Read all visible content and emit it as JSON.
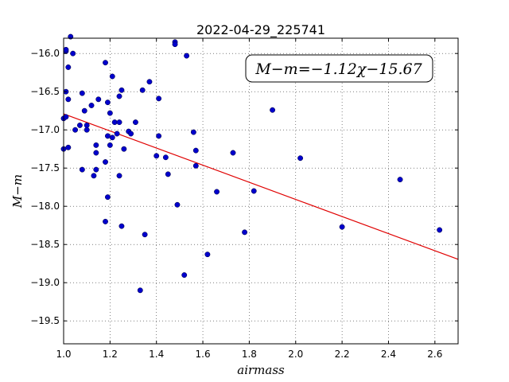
{
  "chart_data": {
    "type": "scatter",
    "title": "2022-04-29_225741",
    "xlabel": "airmass",
    "ylabel": "M−m",
    "xlim": [
      1.0,
      2.7
    ],
    "ylim": [
      -15.8,
      -19.8
    ],
    "grid": true,
    "x_ticks": [
      1.0,
      1.2,
      1.4,
      1.6,
      1.8,
      2.0,
      2.2,
      2.4,
      2.6
    ],
    "x_tick_labels": [
      "1.0",
      "1.2",
      "1.4",
      "1.6",
      "1.8",
      "2.0",
      "2.2",
      "2.4",
      "2.6"
    ],
    "y_ticks": [
      -16.0,
      -16.5,
      -17.0,
      -17.5,
      -18.0,
      -18.5,
      -19.0,
      -19.5
    ],
    "y_tick_labels": [
      "−16.0",
      "−16.5",
      "−17.0",
      "−17.5",
      "−18.0",
      "−18.5",
      "−19.0",
      "−19.5"
    ],
    "annotation": "M−m=−1.12χ−15.67",
    "fit": {
      "slope": -1.12,
      "intercept": -15.67,
      "x_range": [
        1.0,
        2.7
      ],
      "color": "#e00000"
    },
    "point_color": "#0000cc",
    "points": [
      [
        1.0,
        -16.85
      ],
      [
        1.0,
        -17.25
      ],
      [
        1.01,
        -15.97
      ],
      [
        1.01,
        -15.95
      ],
      [
        1.01,
        -16.5
      ],
      [
        1.01,
        -16.83
      ],
      [
        1.02,
        -16.6
      ],
      [
        1.02,
        -17.23
      ],
      [
        1.02,
        -16.18
      ],
      [
        1.03,
        -15.78
      ],
      [
        1.04,
        -16.0
      ],
      [
        1.05,
        -17.0
      ],
      [
        1.07,
        -16.94
      ],
      [
        1.08,
        -17.52
      ],
      [
        1.08,
        -16.52
      ],
      [
        1.09,
        -16.75
      ],
      [
        1.1,
        -16.94
      ],
      [
        1.1,
        -17.0
      ],
      [
        1.12,
        -16.68
      ],
      [
        1.13,
        -17.6
      ],
      [
        1.14,
        -17.52
      ],
      [
        1.14,
        -17.3
      ],
      [
        1.14,
        -17.2
      ],
      [
        1.15,
        -16.6
      ],
      [
        1.18,
        -16.12
      ],
      [
        1.18,
        -17.42
      ],
      [
        1.18,
        -18.2
      ],
      [
        1.19,
        -17.88
      ],
      [
        1.19,
        -16.64
      ],
      [
        1.19,
        -17.08
      ],
      [
        1.2,
        -17.2
      ],
      [
        1.2,
        -16.78
      ],
      [
        1.21,
        -16.3
      ],
      [
        1.21,
        -17.1
      ],
      [
        1.22,
        -16.9
      ],
      [
        1.23,
        -17.05
      ],
      [
        1.24,
        -16.9
      ],
      [
        1.24,
        -16.56
      ],
      [
        1.25,
        -16.48
      ],
      [
        1.24,
        -17.6
      ],
      [
        1.25,
        -18.26
      ],
      [
        1.26,
        -17.25
      ],
      [
        1.28,
        -17.02
      ],
      [
        1.29,
        -17.05
      ],
      [
        1.31,
        -16.9
      ],
      [
        1.33,
        -19.1
      ],
      [
        1.34,
        -16.48
      ],
      [
        1.35,
        -18.37
      ],
      [
        1.37,
        -16.37
      ],
      [
        1.4,
        -17.34
      ],
      [
        1.41,
        -16.59
      ],
      [
        1.41,
        -17.08
      ],
      [
        1.44,
        -17.36
      ],
      [
        1.45,
        -17.58
      ],
      [
        1.48,
        -15.85
      ],
      [
        1.48,
        -15.88
      ],
      [
        1.49,
        -17.98
      ],
      [
        1.52,
        -18.9
      ],
      [
        1.53,
        -16.03
      ],
      [
        1.56,
        -17.03
      ],
      [
        1.57,
        -17.27
      ],
      [
        1.57,
        -17.47
      ],
      [
        1.62,
        -18.63
      ],
      [
        1.66,
        -17.81
      ],
      [
        1.73,
        -17.3
      ],
      [
        1.78,
        -18.34
      ],
      [
        1.82,
        -17.8
      ],
      [
        1.9,
        -16.74
      ],
      [
        2.02,
        -17.37
      ],
      [
        2.2,
        -18.27
      ],
      [
        2.45,
        -17.65
      ],
      [
        2.62,
        -18.31
      ]
    ]
  }
}
